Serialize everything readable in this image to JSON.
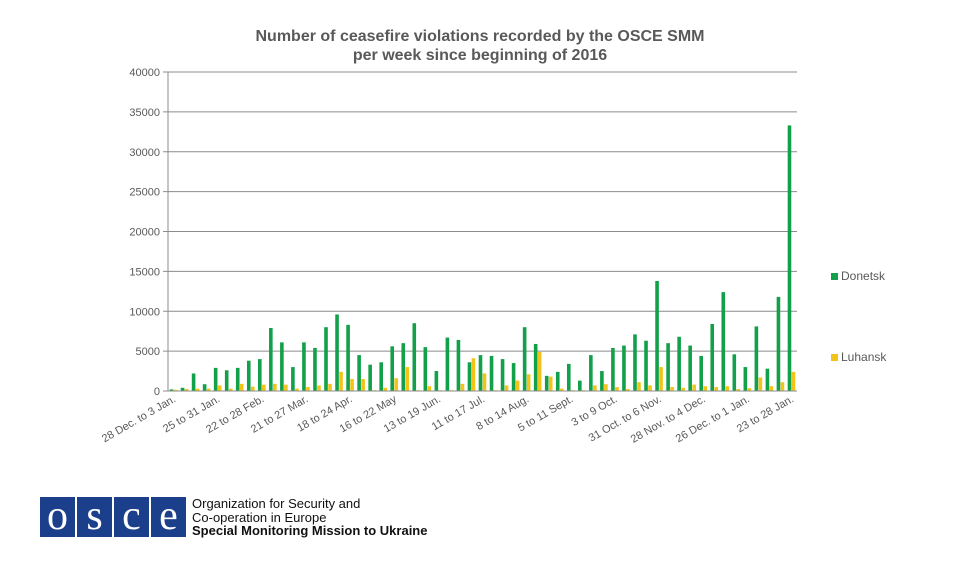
{
  "chart_data": {
    "type": "bar",
    "title": "Number of ceasefire violations recorded by the OSCE SMM per week since beginning of 2016",
    "title_lines": [
      "Number of ceasefire violations recorded by the OSCE SMM",
      "per week since beginning of 2016"
    ],
    "xlabel": "",
    "ylabel": "",
    "ylim": [
      0,
      40000
    ],
    "yticks": [
      0,
      5000,
      10000,
      15000,
      20000,
      25000,
      30000,
      35000,
      40000
    ],
    "grid": true,
    "legend_position": "right",
    "category_label_step": 4,
    "categories": [
      "28 Dec. to 3 Jan.",
      "4 to 10 Jan.",
      "11 to 17 Jan.",
      "18 to 24 Jan.",
      "25 to 31 Jan.",
      "1 to 7 Feb.",
      "8 to 14 Feb.",
      "15 to 21 Feb.",
      "22 to 28 Feb.",
      "29 Feb. to 6 Mar.",
      "7 to 13 Mar.",
      "14 to 20 Mar.",
      "21 to 27 Mar.",
      "28 Mar. to 3 Apr.",
      "4 to 10 Apr.",
      "11 to 17 Apr.",
      "18 to 24 Apr.",
      "25 Apr. to 1 May",
      "2 to 8 May",
      "9 to 15 May",
      "16 to 22 May",
      "23 to 29 May",
      "30 May to 5 Jun.",
      "6 to 12 Jun.",
      "13 to 19 Jun.",
      "20 to 26 Jun.",
      "27 Jun. to 3 Jul.",
      "4 to 10 Jul.",
      "11 to 17 Jul.",
      "18 to 24 Jul.",
      "25 to 31 Jul.",
      "1 to 7 Aug.",
      "8 to 14 Aug.",
      "15 to 21 Aug.",
      "22 to 28 Aug.",
      "29 Aug. to 4 Sept.",
      "5 to 11 Sept.",
      "12 to 18 Sept.",
      "19 to 25 Sept.",
      "26 Sept. to 2 Oct.",
      "3 to 9 Oct.",
      "10 to 16 Oct.",
      "17 to 23 Oct.",
      "24 to 30 Oct.",
      "31 Oct. to 6 Nov.",
      "7 to 13 Nov.",
      "14 to 20 Nov.",
      "21 to 27 Nov.",
      "28 Nov. to 4 Dec.",
      "5 to 11 Dec.",
      "12 to 18 Dec.",
      "19 to 25 Dec.",
      "26 Dec. to 1 Jan.",
      "2 to 8 Jan.",
      "9 to 15 Jan.",
      "16 to 22 Jan.",
      "23 to 28 Jan."
    ],
    "series": [
      {
        "name": "Donetsk",
        "color": "#12a04a",
        "values": [
          200,
          400,
          2200,
          850,
          2900,
          2600,
          2900,
          3800,
          4000,
          7900,
          6100,
          3000,
          6100,
          5400,
          8000,
          9600,
          8300,
          4500,
          3300,
          3600,
          5600,
          6000,
          8500,
          5500,
          2500,
          6700,
          6400,
          3600,
          4500,
          4400,
          4000,
          3500,
          8000,
          5900,
          1900,
          2400,
          3400,
          1300,
          4500,
          2500,
          5400,
          5700,
          7100,
          6300,
          13800,
          6000,
          6800,
          5700,
          4400,
          8400,
          12400,
          4600,
          3000,
          8100,
          2800,
          11800,
          33300
        ]
      },
      {
        "name": "Luhansk",
        "color": "#f2c318",
        "values": [
          150,
          250,
          300,
          300,
          700,
          300,
          900,
          550,
          800,
          900,
          800,
          300,
          500,
          700,
          900,
          2400,
          1500,
          1500,
          100,
          400,
          1600,
          3000,
          100,
          600,
          100,
          100,
          900,
          4100,
          2200,
          100,
          700,
          1300,
          2100,
          4900,
          1800,
          300,
          100,
          100,
          700,
          850,
          500,
          250,
          1100,
          700,
          3000,
          500,
          400,
          800,
          600,
          500,
          600,
          250,
          350,
          1700,
          600,
          1100,
          2400
        ]
      }
    ]
  },
  "logo": {
    "letters": [
      "o",
      "s",
      "c",
      "e"
    ],
    "color": "#1c3f8c",
    "lines": [
      "Organization for Security and",
      "Co-operation in Europe",
      "Special Monitoring Mission to Ukraine"
    ]
  }
}
